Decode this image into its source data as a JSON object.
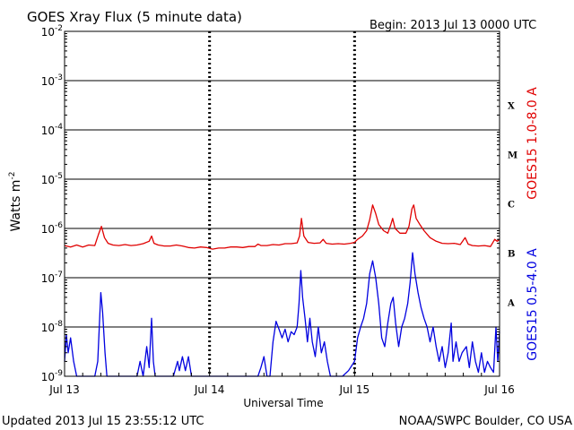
{
  "header": {
    "title": "GOES Xray Flux (5 minute data)",
    "begin": "Begin:  2013 Jul 13 0000 UTC"
  },
  "footer": {
    "updated": "Updated 2013 Jul 15 23:55:12 UTC",
    "credit": "NOAA/SWPC Boulder, CO USA"
  },
  "colors": {
    "long_channel": "#e00000",
    "short_channel": "#0000e0",
    "axes": "#000000"
  },
  "chart_data": {
    "type": "line",
    "title": "GOES Xray Flux (5 minute data)",
    "xlabel": "Universal Time",
    "ylabel": "Watts m",
    "ylabel_superscript": "-2",
    "y_scale": "log",
    "ylim": [
      1e-09,
      0.01
    ],
    "xlim": [
      0,
      72
    ],
    "x_unit": "hours since 2013 Jul 13 0000 UTC",
    "x_ticks": [
      {
        "x": 0,
        "label": "Jul 13"
      },
      {
        "x": 24,
        "label": "Jul 14"
      },
      {
        "x": 48,
        "label": "Jul 15"
      },
      {
        "x": 72,
        "label": "Jul 16"
      }
    ],
    "y_ticks": [
      {
        "exp": -9,
        "label_base": "10",
        "label_exp": "-9"
      },
      {
        "exp": -8,
        "label_base": "10",
        "label_exp": "-8"
      },
      {
        "exp": -7,
        "label_base": "10",
        "label_exp": "-7"
      },
      {
        "exp": -6,
        "label_base": "10",
        "label_exp": "-6"
      },
      {
        "exp": -5,
        "label_base": "10",
        "label_exp": "-5"
      },
      {
        "exp": -4,
        "label_base": "10",
        "label_exp": "-4"
      },
      {
        "exp": -3,
        "label_base": "10",
        "label_exp": "-3"
      },
      {
        "exp": -2,
        "label_base": "10",
        "label_exp": "-2"
      }
    ],
    "flare_classes": [
      {
        "label": "A",
        "exp": -8
      },
      {
        "label": "B",
        "exp": -7
      },
      {
        "label": "C",
        "exp": -6
      },
      {
        "label": "M",
        "exp": -5
      },
      {
        "label": "X",
        "exp": -4
      }
    ],
    "grid": "horizontal lines at each decade, dashed vertical lines at each day",
    "series": [
      {
        "name": "GOES15 1.0-8.0 A",
        "color": "#e00000",
        "points": [
          [
            0,
            4.5e-07
          ],
          [
            1,
            4.2e-07
          ],
          [
            2,
            4.6e-07
          ],
          [
            3,
            4.2e-07
          ],
          [
            4,
            4.6e-07
          ],
          [
            5,
            4.5e-07
          ],
          [
            5.6,
            7.5e-07
          ],
          [
            6.1,
            1.1e-06
          ],
          [
            6.6,
            6.5e-07
          ],
          [
            7.2,
            5e-07
          ],
          [
            8,
            4.6e-07
          ],
          [
            9,
            4.5e-07
          ],
          [
            10,
            4.7e-07
          ],
          [
            11,
            4.5e-07
          ],
          [
            12,
            4.6e-07
          ],
          [
            13,
            4.9e-07
          ],
          [
            14,
            5.5e-07
          ],
          [
            14.4,
            7e-07
          ],
          [
            14.8,
            5e-07
          ],
          [
            15.5,
            4.6e-07
          ],
          [
            16.5,
            4.4e-07
          ],
          [
            17.5,
            4.4e-07
          ],
          [
            18.5,
            4.6e-07
          ],
          [
            19.5,
            4.4e-07
          ],
          [
            20.5,
            4.1e-07
          ],
          [
            21.5,
            4e-07
          ],
          [
            22.5,
            4.2e-07
          ],
          [
            23.5,
            4.1e-07
          ],
          [
            24.5,
            3.8e-07
          ],
          [
            25.5,
            4e-07
          ],
          [
            26.5,
            4e-07
          ],
          [
            27.5,
            4.2e-07
          ],
          [
            28.5,
            4.2e-07
          ],
          [
            29.5,
            4.1e-07
          ],
          [
            30.5,
            4.3e-07
          ],
          [
            31.5,
            4.3e-07
          ],
          [
            32,
            4.8e-07
          ],
          [
            32.5,
            4.5e-07
          ],
          [
            33.5,
            4.5e-07
          ],
          [
            34.5,
            4.7e-07
          ],
          [
            35.5,
            4.6e-07
          ],
          [
            36.5,
            4.9e-07
          ],
          [
            37.5,
            4.9e-07
          ],
          [
            38.5,
            5.1e-07
          ],
          [
            38.9,
            7e-07
          ],
          [
            39.2,
            1.6e-06
          ],
          [
            39.6,
            7e-07
          ],
          [
            40.3,
            5.2e-07
          ],
          [
            41.3,
            5e-07
          ],
          [
            42.3,
            5.1e-07
          ],
          [
            42.8,
            6e-07
          ],
          [
            43.3,
            5e-07
          ],
          [
            44.3,
            4.8e-07
          ],
          [
            45.3,
            4.9e-07
          ],
          [
            46.3,
            4.8e-07
          ],
          [
            47.3,
            5e-07
          ],
          [
            48,
            5.2e-07
          ],
          [
            48.5,
            6e-07
          ],
          [
            49.3,
            7e-07
          ],
          [
            50,
            9e-07
          ],
          [
            50.5,
            1.5e-06
          ],
          [
            51,
            3e-06
          ],
          [
            51.5,
            2e-06
          ],
          [
            52,
            1.2e-06
          ],
          [
            52.8,
            9e-07
          ],
          [
            53.5,
            8e-07
          ],
          [
            54,
            1.2e-06
          ],
          [
            54.3,
            1.6e-06
          ],
          [
            54.7,
            1e-06
          ],
          [
            55.5,
            8e-07
          ],
          [
            56.5,
            8e-07
          ],
          [
            57,
            1.1e-06
          ],
          [
            57.5,
            2.5e-06
          ],
          [
            57.8,
            3e-06
          ],
          [
            58.2,
            1.6e-06
          ],
          [
            58.8,
            1.2e-06
          ],
          [
            59.5,
            9e-07
          ],
          [
            60.5,
            6.5e-07
          ],
          [
            61.5,
            5.5e-07
          ],
          [
            62.5,
            5e-07
          ],
          [
            63.5,
            4.9e-07
          ],
          [
            64.5,
            5e-07
          ],
          [
            65.5,
            4.7e-07
          ],
          [
            66.3,
            6.5e-07
          ],
          [
            66.8,
            4.8e-07
          ],
          [
            67.5,
            4.5e-07
          ],
          [
            68.5,
            4.4e-07
          ],
          [
            69.5,
            4.5e-07
          ],
          [
            70.5,
            4.3e-07
          ],
          [
            71.2,
            6e-07
          ],
          [
            71.6,
            5.5e-07
          ],
          [
            72,
            6e-07
          ]
        ]
      },
      {
        "name": "GOES15 0.5-4.0 A",
        "color": "#0000e0",
        "points": [
          [
            0,
            2e-09
          ],
          [
            0.3,
            7e-09
          ],
          [
            0.6,
            3e-09
          ],
          [
            1,
            6e-09
          ],
          [
            1.5,
            2e-09
          ],
          [
            2,
            1e-09
          ],
          [
            3,
            1e-09
          ],
          [
            4,
            1e-09
          ],
          [
            5,
            1e-09
          ],
          [
            5.5,
            2e-09
          ],
          [
            6,
            5e-08
          ],
          [
            6.3,
            2e-08
          ],
          [
            6.7,
            3e-09
          ],
          [
            7,
            1e-09
          ],
          [
            9,
            1e-09
          ],
          [
            11,
            1e-09
          ],
          [
            12,
            1e-09
          ],
          [
            12.5,
            2e-09
          ],
          [
            13,
            1e-09
          ],
          [
            13.6,
            4e-09
          ],
          [
            14,
            1.5e-09
          ],
          [
            14.4,
            1.5e-08
          ],
          [
            14.7,
            2e-09
          ],
          [
            15,
            1e-09
          ],
          [
            18,
            1e-09
          ],
          [
            18.7,
            2e-09
          ],
          [
            19,
            1.3e-09
          ],
          [
            19.5,
            2.5e-09
          ],
          [
            20,
            1.3e-09
          ],
          [
            20.5,
            2.5e-09
          ],
          [
            21,
            1e-09
          ],
          [
            24,
            1e-09
          ],
          [
            28,
            1e-09
          ],
          [
            32,
            1e-09
          ],
          [
            32.5,
            1.5e-09
          ],
          [
            33,
            2.5e-09
          ],
          [
            33.5,
            1e-09
          ],
          [
            34,
            1e-09
          ],
          [
            34.5,
            5e-09
          ],
          [
            35,
            1.3e-08
          ],
          [
            35.5,
            9e-09
          ],
          [
            36,
            6e-09
          ],
          [
            36.5,
            9e-09
          ],
          [
            37,
            5e-09
          ],
          [
            37.5,
            8e-09
          ],
          [
            38,
            7e-09
          ],
          [
            38.5,
            1e-08
          ],
          [
            38.8,
            3e-08
          ],
          [
            39.1,
            1.4e-07
          ],
          [
            39.4,
            4e-08
          ],
          [
            39.8,
            1.5e-08
          ],
          [
            40.2,
            5e-09
          ],
          [
            40.6,
            1.5e-08
          ],
          [
            41,
            5e-09
          ],
          [
            41.5,
            2.5e-09
          ],
          [
            42,
            1e-08
          ],
          [
            42.5,
            3e-09
          ],
          [
            43,
            5e-09
          ],
          [
            43.5,
            2e-09
          ],
          [
            44,
            1e-09
          ],
          [
            46,
            1e-09
          ],
          [
            47,
            1.3e-09
          ],
          [
            48,
            2e-09
          ],
          [
            48.5,
            6e-09
          ],
          [
            49,
            1e-08
          ],
          [
            49.5,
            1.5e-08
          ],
          [
            50,
            3e-08
          ],
          [
            50.5,
            1.2e-07
          ],
          [
            51,
            2.2e-07
          ],
          [
            51.5,
            1e-07
          ],
          [
            52,
            3e-08
          ],
          [
            52.5,
            6e-09
          ],
          [
            53,
            4e-09
          ],
          [
            53.5,
            1.2e-08
          ],
          [
            54,
            3e-08
          ],
          [
            54.4,
            4e-08
          ],
          [
            54.8,
            1.2e-08
          ],
          [
            55.3,
            4e-09
          ],
          [
            55.8,
            1e-08
          ],
          [
            56.3,
            1.5e-08
          ],
          [
            56.8,
            3e-08
          ],
          [
            57.2,
            8e-08
          ],
          [
            57.6,
            3.2e-07
          ],
          [
            58,
            1.2e-07
          ],
          [
            58.5,
            5e-08
          ],
          [
            59,
            2.5e-08
          ],
          [
            59.5,
            1.5e-08
          ],
          [
            60,
            1e-08
          ],
          [
            60.5,
            5e-09
          ],
          [
            61,
            1e-08
          ],
          [
            61.5,
            4e-09
          ],
          [
            62,
            2e-09
          ],
          [
            62.5,
            4e-09
          ],
          [
            63,
            1.5e-09
          ],
          [
            63.5,
            3e-09
          ],
          [
            64,
            1.2e-08
          ],
          [
            64.3,
            2e-09
          ],
          [
            64.8,
            5e-09
          ],
          [
            65.3,
            2e-09
          ],
          [
            65.8,
            3e-09
          ],
          [
            66.5,
            4e-09
          ],
          [
            67,
            1.5e-09
          ],
          [
            67.5,
            5e-09
          ],
          [
            68,
            2e-09
          ],
          [
            68.5,
            1.2e-09
          ],
          [
            69,
            3e-09
          ],
          [
            69.5,
            1.2e-09
          ],
          [
            70,
            2e-09
          ],
          [
            70.5,
            1.5e-09
          ],
          [
            71,
            1.2e-09
          ],
          [
            71.4,
            1e-08
          ],
          [
            71.7,
            2e-09
          ],
          [
            72,
            8e-09
          ]
        ]
      }
    ]
  }
}
